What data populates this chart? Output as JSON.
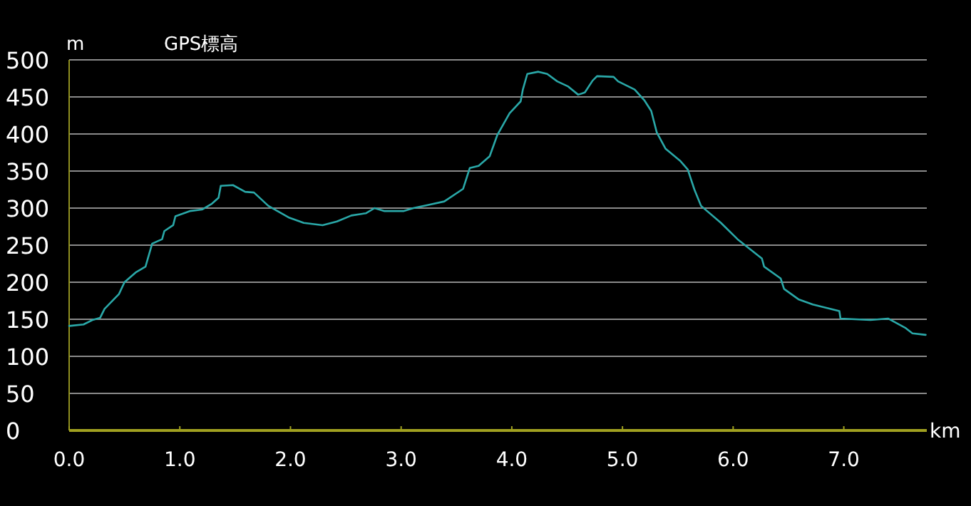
{
  "chart_data": {
    "type": "line",
    "title": "GPS標高",
    "ylabel": "m",
    "xlabel": "km",
    "color": "#2aa8a8",
    "grid": "y",
    "x": [
      0,
      0.13,
      0.21,
      0.28,
      0.32,
      0.45,
      0.5,
      0.6,
      0.69,
      0.75,
      0.84,
      0.86,
      0.94,
      0.96,
      1.09,
      1.2,
      1.29,
      1.35,
      1.37,
      1.48,
      1.59,
      1.67,
      1.8,
      1.99,
      2.12,
      2.29,
      2.42,
      2.55,
      2.68,
      2.76,
      2.85,
      3.02,
      3.11,
      3.24,
      3.39,
      3.56,
      3.62,
      3.7,
      3.8,
      3.87,
      3.98,
      4.08,
      4.1,
      4.14,
      4.24,
      4.32,
      4.41,
      4.51,
      4.6,
      4.66,
      4.73,
      4.77,
      4.92,
      4.96,
      5.11,
      5.2,
      5.26,
      5.31,
      5.39,
      5.52,
      5.59,
      5.65,
      5.71,
      5.89,
      6.04,
      6.26,
      6.28,
      6.43,
      6.46,
      6.59,
      6.72,
      6.96,
      6.97,
      7.24,
      7.4,
      7.56,
      7.62,
      7.74
    ],
    "values": [
      141,
      143,
      149,
      152,
      164,
      184,
      200,
      213,
      221,
      252,
      258,
      269,
      277,
      289,
      296,
      298,
      306,
      314,
      330,
      331,
      322,
      321,
      303,
      287,
      280,
      277,
      282,
      290,
      293,
      300,
      296,
      296,
      300,
      304,
      309,
      326,
      354,
      357,
      370,
      399,
      428,
      444,
      460,
      481,
      484,
      481,
      471,
      464,
      453,
      456,
      472,
      478,
      477,
      471,
      460,
      445,
      431,
      402,
      380,
      364,
      352,
      325,
      303,
      280,
      258,
      232,
      221,
      205,
      191,
      177,
      170,
      161,
      151,
      149,
      151,
      138,
      131,
      129
    ],
    "xlim": [
      0,
      7.75
    ],
    "ylim": [
      0,
      500
    ],
    "xticks": [
      {
        "value": 0,
        "label": "0.0"
      },
      {
        "value": 1,
        "label": "1.0"
      },
      {
        "value": 2,
        "label": "2.0"
      },
      {
        "value": 3,
        "label": "3.0"
      },
      {
        "value": 4,
        "label": "4.0"
      },
      {
        "value": 5,
        "label": "5.0"
      },
      {
        "value": 6,
        "label": "6.0"
      },
      {
        "value": 7,
        "label": "7.0"
      }
    ],
    "yticks": [
      0,
      50,
      100,
      150,
      200,
      250,
      300,
      350,
      400,
      450,
      500
    ]
  }
}
